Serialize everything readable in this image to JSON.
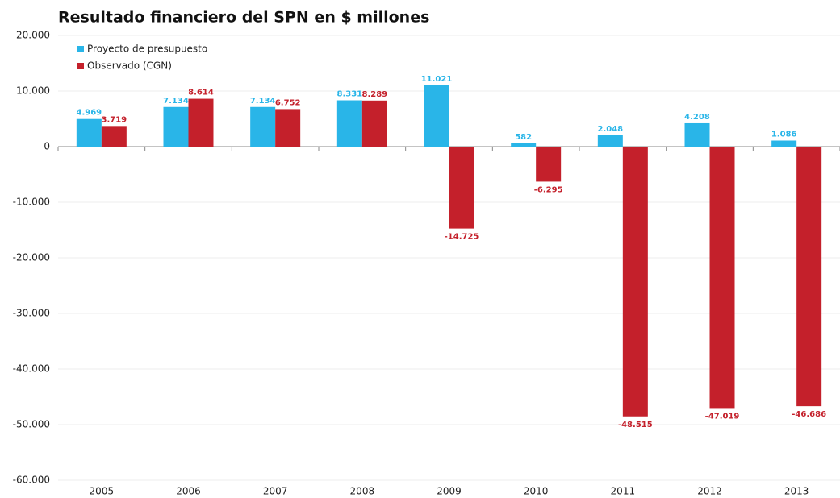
{
  "chart_data": {
    "type": "bar",
    "title": "Resultado financiero del SPN en $ millones",
    "categories": [
      "2005",
      "2006",
      "2007",
      "2008",
      "2009",
      "2010",
      "2011",
      "2012",
      "2013"
    ],
    "series": [
      {
        "name": "Proyecto de presupuesto",
        "color": "#29b5e8",
        "values": [
          4969,
          7134,
          7134,
          8331,
          11021,
          582,
          2048,
          4208,
          1086
        ],
        "value_labels": [
          "4.969",
          "7.134",
          "7.134",
          "8.331",
          "11.021",
          "582",
          "2.048",
          "4.208",
          "1.086"
        ]
      },
      {
        "name": "Observado (CGN)",
        "color": "#c4202b",
        "values": [
          3719,
          8614,
          6752,
          8289,
          -14725,
          -6295,
          -48515,
          -47019,
          -46686
        ],
        "value_labels": [
          "3.719",
          "8.614",
          "6.752",
          "8.289",
          "-14.725",
          "-6.295",
          "-48.515",
          "-47.019",
          "-46.686"
        ]
      }
    ],
    "ylim": [
      -60000,
      20000
    ],
    "yticks": [
      {
        "value": -60000,
        "label": "-60.000"
      },
      {
        "value": -50000,
        "label": "-50.000"
      },
      {
        "value": -40000,
        "label": "-40.000"
      },
      {
        "value": -30000,
        "label": "-30.000"
      },
      {
        "value": -20000,
        "label": "-20.000"
      },
      {
        "value": -10000,
        "label": "-10.000"
      },
      0,
      {
        "value": 10000,
        "label": "10.000"
      },
      {
        "value": 20000,
        "label": "20.000"
      }
    ],
    "grid": true,
    "legend": "top-left"
  }
}
